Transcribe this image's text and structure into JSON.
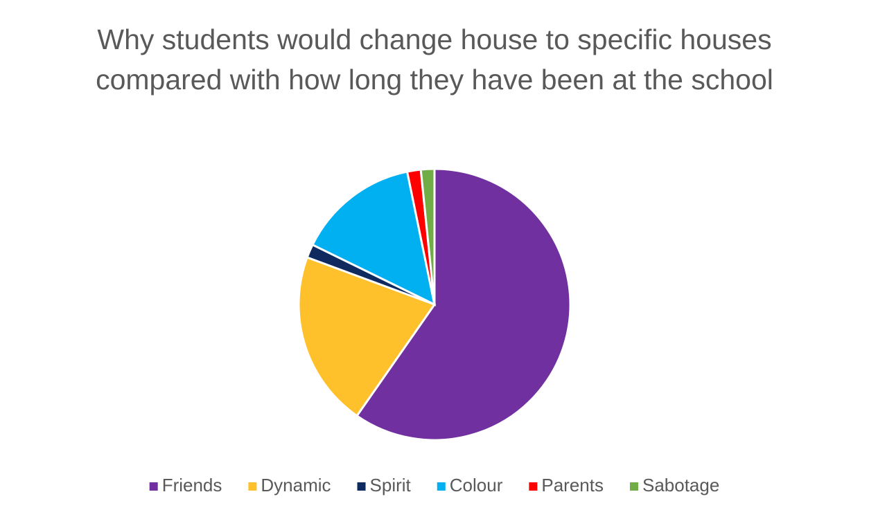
{
  "chart_data": {
    "type": "pie",
    "title": "Why students would change house to specific houses compared with how long they have been at the school",
    "categories": [
      "Friends",
      "Dynamic",
      "Spirit",
      "Colour",
      "Parents",
      "Sabotage"
    ],
    "values": [
      37,
      13,
      1,
      9,
      1,
      1
    ],
    "colors": [
      "#7030a0",
      "#ffc12b",
      "#0e2a5e",
      "#00b0f0",
      "#ff0000",
      "#70ad47"
    ],
    "legend": "bottom"
  }
}
